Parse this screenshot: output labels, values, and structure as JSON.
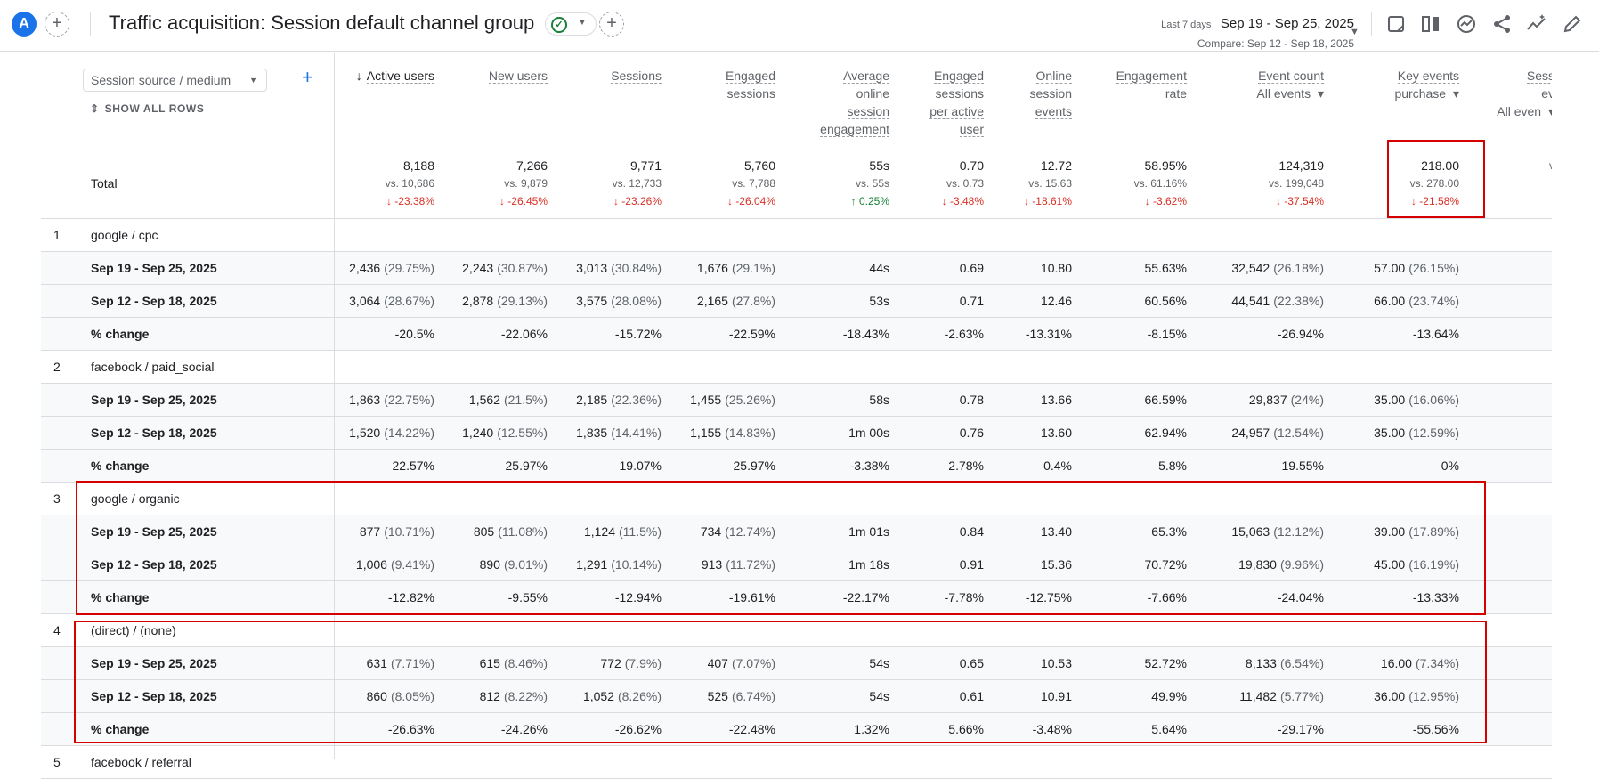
{
  "header": {
    "avatar_letter": "A",
    "title": "Traffic acquisition: Session default channel group",
    "date_label": "Last 7 days",
    "date_range": "Sep 19 - Sep 25, 2025",
    "compare": "Compare: Sep 12 - Sep 18, 2025",
    "tools": [
      "edit-note-icon",
      "compare-columns-icon",
      "insights-icon",
      "share-icon",
      "trend-icon",
      "pencil-icon"
    ]
  },
  "table": {
    "dimension": "Session source / medium",
    "show_all_rows": "SHOW ALL ROWS",
    "columns": [
      {
        "lines": [
          "Active users"
        ],
        "sort": "↓"
      },
      {
        "lines": [
          "New users"
        ]
      },
      {
        "lines": [
          "Sessions"
        ]
      },
      {
        "lines": [
          "Engaged",
          "sessions"
        ]
      },
      {
        "lines": [
          "Average",
          "online",
          "session",
          "engagement"
        ]
      },
      {
        "lines": [
          "Engaged",
          "sessions",
          "per active",
          "user"
        ]
      },
      {
        "lines": [
          "Online",
          "session",
          "events"
        ]
      },
      {
        "lines": [
          "Engagement",
          "rate"
        ]
      },
      {
        "lines": [
          "Event count"
        ],
        "select": "All events"
      },
      {
        "lines": [
          "Key events"
        ],
        "select": "purchase"
      },
      {
        "lines": [
          "Sess",
          "ev"
        ],
        "select": "All even"
      }
    ],
    "total_label": "Total",
    "totals": [
      {
        "value": "8,188",
        "vs": "vs. 10,686",
        "change": "↓ -23.38%",
        "dir": "down"
      },
      {
        "value": "7,266",
        "vs": "vs. 9,879",
        "change": "↓ -26.45%",
        "dir": "down"
      },
      {
        "value": "9,771",
        "vs": "vs. 12,733",
        "change": "↓ -23.26%",
        "dir": "down"
      },
      {
        "value": "5,760",
        "vs": "vs. 7,788",
        "change": "↓ -26.04%",
        "dir": "down"
      },
      {
        "value": "55s",
        "vs": "vs. 55s",
        "change": "↑ 0.25%",
        "dir": "up"
      },
      {
        "value": "0.70",
        "vs": "vs. 0.73",
        "change": "↓ -3.48%",
        "dir": "down"
      },
      {
        "value": "12.72",
        "vs": "vs. 15.63",
        "change": "↓ -18.61%",
        "dir": "down"
      },
      {
        "value": "58.95%",
        "vs": "vs. 61.16%",
        "change": "↓ -3.62%",
        "dir": "down"
      },
      {
        "value": "124,319",
        "vs": "vs. 199,048",
        "change": "↓ -37.54%",
        "dir": "down"
      },
      {
        "value": "218.00",
        "vs": "vs. 278.00",
        "change": "↓ -21.58%",
        "dir": "down"
      },
      {
        "value": "",
        "vs": "v",
        "change": "",
        "dir": "down"
      }
    ],
    "groups": [
      {
        "num": "1",
        "name": "google / cpc",
        "rows": [
          {
            "label": "Sep 19 - Sep 25, 2025",
            "cells": [
              [
                "2,436",
                "(29.75%)"
              ],
              [
                "2,243",
                "(30.87%)"
              ],
              [
                "3,013",
                "(30.84%)"
              ],
              [
                "1,676",
                "(29.1%)"
              ],
              [
                "44s",
                ""
              ],
              [
                "0.69",
                ""
              ],
              [
                "10.80",
                ""
              ],
              [
                "55.63%",
                ""
              ],
              [
                "32,542",
                "(26.18%)"
              ],
              [
                "57.00",
                "(26.15%)"
              ]
            ]
          },
          {
            "label": "Sep 12 - Sep 18, 2025",
            "cells": [
              [
                "3,064",
                "(28.67%)"
              ],
              [
                "2,878",
                "(29.13%)"
              ],
              [
                "3,575",
                "(28.08%)"
              ],
              [
                "2,165",
                "(27.8%)"
              ],
              [
                "53s",
                ""
              ],
              [
                "0.71",
                ""
              ],
              [
                "12.46",
                ""
              ],
              [
                "60.56%",
                ""
              ],
              [
                "44,541",
                "(22.38%)"
              ],
              [
                "66.00",
                "(23.74%)"
              ]
            ]
          },
          {
            "label": "% change",
            "cells": [
              [
                "-20.5%",
                ""
              ],
              [
                "-22.06%",
                ""
              ],
              [
                "-15.72%",
                ""
              ],
              [
                "-22.59%",
                ""
              ],
              [
                "-18.43%",
                ""
              ],
              [
                "-2.63%",
                ""
              ],
              [
                "-13.31%",
                ""
              ],
              [
                "-8.15%",
                ""
              ],
              [
                "-26.94%",
                ""
              ],
              [
                "-13.64%",
                ""
              ]
            ]
          }
        ]
      },
      {
        "num": "2",
        "name": "facebook / paid_social",
        "rows": [
          {
            "label": "Sep 19 - Sep 25, 2025",
            "cells": [
              [
                "1,863",
                "(22.75%)"
              ],
              [
                "1,562",
                "(21.5%)"
              ],
              [
                "2,185",
                "(22.36%)"
              ],
              [
                "1,455",
                "(25.26%)"
              ],
              [
                "58s",
                ""
              ],
              [
                "0.78",
                ""
              ],
              [
                "13.66",
                ""
              ],
              [
                "66.59%",
                ""
              ],
              [
                "29,837",
                "(24%)"
              ],
              [
                "35.00",
                "(16.06%)"
              ]
            ]
          },
          {
            "label": "Sep 12 - Sep 18, 2025",
            "cells": [
              [
                "1,520",
                "(14.22%)"
              ],
              [
                "1,240",
                "(12.55%)"
              ],
              [
                "1,835",
                "(14.41%)"
              ],
              [
                "1,155",
                "(14.83%)"
              ],
              [
                "1m 00s",
                ""
              ],
              [
                "0.76",
                ""
              ],
              [
                "13.60",
                ""
              ],
              [
                "62.94%",
                ""
              ],
              [
                "24,957",
                "(12.54%)"
              ],
              [
                "35.00",
                "(12.59%)"
              ]
            ]
          },
          {
            "label": "% change",
            "cells": [
              [
                "22.57%",
                ""
              ],
              [
                "25.97%",
                ""
              ],
              [
                "19.07%",
                ""
              ],
              [
                "25.97%",
                ""
              ],
              [
                "-3.38%",
                ""
              ],
              [
                "2.78%",
                ""
              ],
              [
                "0.4%",
                ""
              ],
              [
                "5.8%",
                ""
              ],
              [
                "19.55%",
                ""
              ],
              [
                "0%",
                ""
              ]
            ]
          }
        ]
      },
      {
        "num": "3",
        "name": "google / organic",
        "rows": [
          {
            "label": "Sep 19 - Sep 25, 2025",
            "cells": [
              [
                "877",
                "(10.71%)"
              ],
              [
                "805",
                "(11.08%)"
              ],
              [
                "1,124",
                "(11.5%)"
              ],
              [
                "734",
                "(12.74%)"
              ],
              [
                "1m 01s",
                ""
              ],
              [
                "0.84",
                ""
              ],
              [
                "13.40",
                ""
              ],
              [
                "65.3%",
                ""
              ],
              [
                "15,063",
                "(12.12%)"
              ],
              [
                "39.00",
                "(17.89%)"
              ]
            ]
          },
          {
            "label": "Sep 12 - Sep 18, 2025",
            "cells": [
              [
                "1,006",
                "(9.41%)"
              ],
              [
                "890",
                "(9.01%)"
              ],
              [
                "1,291",
                "(10.14%)"
              ],
              [
                "913",
                "(11.72%)"
              ],
              [
                "1m 18s",
                ""
              ],
              [
                "0.91",
                ""
              ],
              [
                "15.36",
                ""
              ],
              [
                "70.72%",
                ""
              ],
              [
                "19,830",
                "(9.96%)"
              ],
              [
                "45.00",
                "(16.19%)"
              ]
            ]
          },
          {
            "label": "% change",
            "cells": [
              [
                "-12.82%",
                ""
              ],
              [
                "-9.55%",
                ""
              ],
              [
                "-12.94%",
                ""
              ],
              [
                "-19.61%",
                ""
              ],
              [
                "-22.17%",
                ""
              ],
              [
                "-7.78%",
                ""
              ],
              [
                "-12.75%",
                ""
              ],
              [
                "-7.66%",
                ""
              ],
              [
                "-24.04%",
                ""
              ],
              [
                "-13.33%",
                ""
              ]
            ]
          }
        ]
      },
      {
        "num": "4",
        "name": "(direct) / (none)",
        "rows": [
          {
            "label": "Sep 19 - Sep 25, 2025",
            "cells": [
              [
                "631",
                "(7.71%)"
              ],
              [
                "615",
                "(8.46%)"
              ],
              [
                "772",
                "(7.9%)"
              ],
              [
                "407",
                "(7.07%)"
              ],
              [
                "54s",
                ""
              ],
              [
                "0.65",
                ""
              ],
              [
                "10.53",
                ""
              ],
              [
                "52.72%",
                ""
              ],
              [
                "8,133",
                "(6.54%)"
              ],
              [
                "16.00",
                "(7.34%)"
              ]
            ]
          },
          {
            "label": "Sep 12 - Sep 18, 2025",
            "cells": [
              [
                "860",
                "(8.05%)"
              ],
              [
                "812",
                "(8.22%)"
              ],
              [
                "1,052",
                "(8.26%)"
              ],
              [
                "525",
                "(6.74%)"
              ],
              [
                "54s",
                ""
              ],
              [
                "0.61",
                ""
              ],
              [
                "10.91",
                ""
              ],
              [
                "49.9%",
                ""
              ],
              [
                "11,482",
                "(5.77%)"
              ],
              [
                "36.00",
                "(12.95%)"
              ]
            ]
          },
          {
            "label": "% change",
            "cells": [
              [
                "-26.63%",
                ""
              ],
              [
                "-24.26%",
                ""
              ],
              [
                "-26.62%",
                ""
              ],
              [
                "-22.48%",
                ""
              ],
              [
                "1.32%",
                ""
              ],
              [
                "5.66%",
                ""
              ],
              [
                "-3.48%",
                ""
              ],
              [
                "5.64%",
                ""
              ],
              [
                "-29.17%",
                ""
              ],
              [
                "-55.56%",
                ""
              ]
            ]
          }
        ]
      },
      {
        "num": "5",
        "name": "facebook / referral",
        "rows": []
      }
    ]
  },
  "colors": {
    "accent": "#1a73e8",
    "highlight": "#d50000",
    "down": "#d93025",
    "up": "#188038"
  }
}
